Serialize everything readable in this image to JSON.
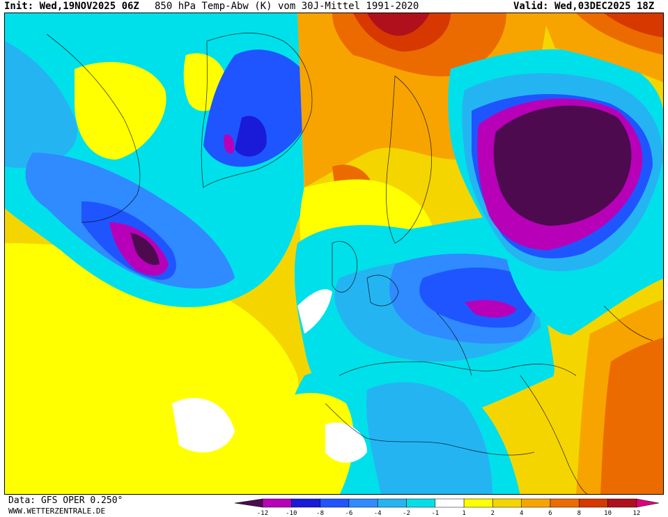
{
  "header": {
    "init": "Init: Wed,19NOV2025 06Z",
    "title": "850 hPa Temp-Abw (K) vom 30J-Mittel 1991-2020",
    "valid": "Valid: Wed,03DEC2025 18Z"
  },
  "footer": {
    "data_source": "Data: GFS OPER 0.250°",
    "website": "WWW.WETTERZENTRALE.DE"
  },
  "legend": {
    "ticks": [
      "-12",
      "-10",
      "-8",
      "-6",
      "-4",
      "-2",
      "-1",
      "1",
      "2",
      "4",
      "6",
      "8",
      "10",
      "12"
    ],
    "colors": [
      "#4d0a4f",
      "#b800b8",
      "#1a1ad9",
      "#1f55ff",
      "#2f8bff",
      "#25b4f2",
      "#00e0ea",
      "#ffffff",
      "#ffff00",
      "#f5d500",
      "#f7a400",
      "#ec6b00",
      "#d63800",
      "#b0101c",
      "#e0007a"
    ]
  },
  "map": {
    "colors": {
      "deep_negative": "#4d0a4f",
      "strong_negative": "#b800b8",
      "negative_8": "#1a1ad9",
      "negative_6": "#1f55ff",
      "negative_4": "#2f8bff",
      "negative_2": "#25b4f2",
      "negative_1": "#00e0ea",
      "neutral": "#ffffff",
      "positive_1": "#ffff00",
      "positive_2": "#f5d500",
      "positive_4": "#f7a400",
      "positive_6": "#ec6b00",
      "positive_8": "#d63800",
      "positive_10": "#b0101c"
    }
  }
}
